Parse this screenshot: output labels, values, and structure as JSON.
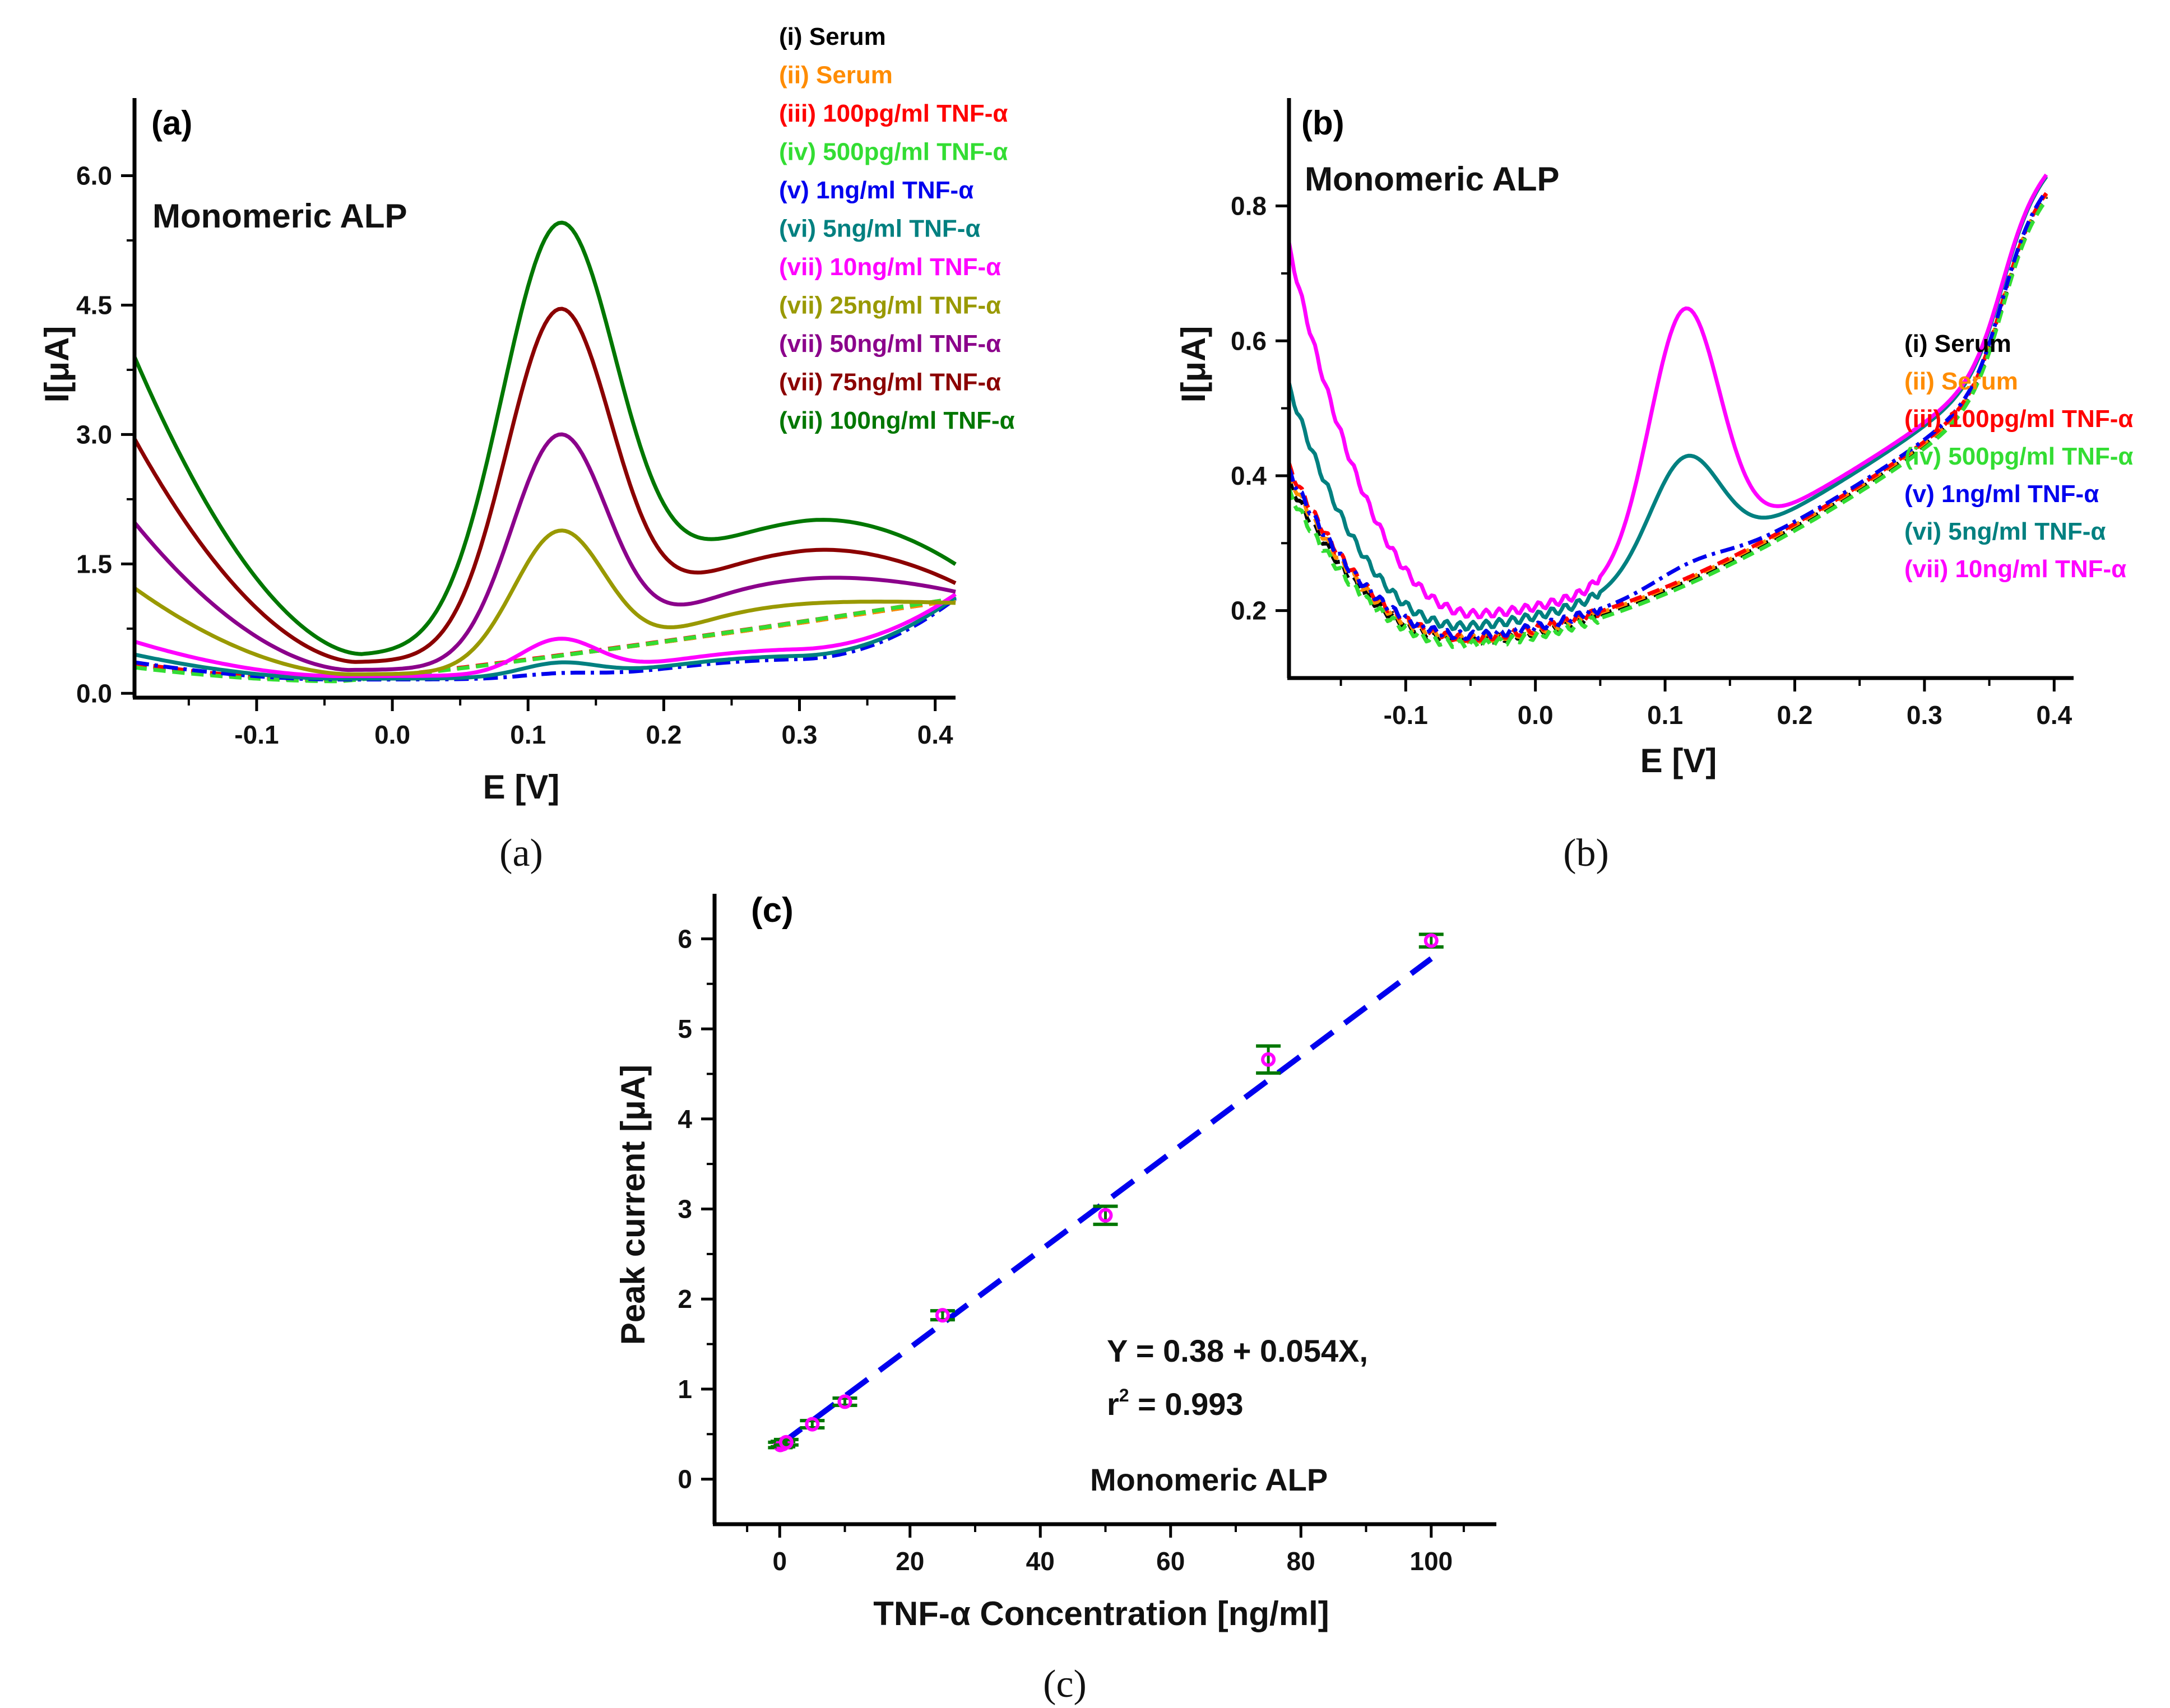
{
  "chart_data": [
    {
      "panel": "(a)",
      "type": "line",
      "title": "Monomeric ALP",
      "xlabel": "E [V]",
      "ylabel": "I[μA]",
      "xlim": [
        -0.19,
        0.415
      ],
      "ylim": [
        -0.05,
        6.9
      ],
      "xticks": [
        -0.1,
        0.0,
        0.1,
        0.2,
        0.3,
        0.4
      ],
      "xtick_labels": [
        "-0.1",
        "0.0",
        "0.1",
        "0.2",
        "0.3",
        "0.4"
      ],
      "yticks": [
        0.0,
        1.5,
        3.0,
        4.5,
        6.0
      ],
      "ytick_labels": [
        "0.0",
        "1.5",
        "3.0",
        "4.5",
        "6.0"
      ],
      "caption": "(a)",
      "legend_position": "top-right",
      "series": [
        {
          "name": "(i) Serum",
          "color": "#000000",
          "style": "dash",
          "params": {
            "start": 0.33,
            "min": 0.15,
            "minx": -0.04,
            "peak": 0.0,
            "plateau": 0.4,
            "end": 1.08,
            "pw": 0.04
          }
        },
        {
          "name": "(ii) Serum",
          "color": "#ff8c00",
          "style": "dash",
          "params": {
            "start": 0.34,
            "min": 0.15,
            "minx": -0.04,
            "peak": 0.0,
            "plateau": 0.4,
            "end": 1.08,
            "pw": 0.04
          }
        },
        {
          "name": "(iii) 100pg/ml TNF-α",
          "color": "#ff0000",
          "style": "dash",
          "params": {
            "start": 0.35,
            "min": 0.15,
            "minx": -0.04,
            "peak": 0.0,
            "plateau": 0.4,
            "end": 1.1,
            "pw": 0.04
          }
        },
        {
          "name": "(iv) 500pg/ml TNF-α",
          "color": "#33dd33",
          "style": "dash",
          "params": {
            "start": 0.3,
            "min": 0.14,
            "minx": -0.04,
            "peak": 0.0,
            "plateau": 0.4,
            "end": 1.1,
            "pw": 0.04
          }
        },
        {
          "name": "(v) 1ng/ml TNF-α",
          "color": "#0000ee",
          "style": "dashdot",
          "params": {
            "start": 0.36,
            "min": 0.16,
            "minx": -0.04,
            "peak": 0.05,
            "plateau": 0.41,
            "end": 1.1,
            "pw": 0.04
          }
        },
        {
          "name": "(vi) 5ng/ml TNF-α",
          "color": "#008080",
          "style": "solid",
          "params": {
            "start": 0.45,
            "min": 0.17,
            "minx": -0.04,
            "peak": 0.16,
            "plateau": 0.45,
            "end": 1.12,
            "pw": 0.04
          }
        },
        {
          "name": "(vii) 10ng/ml TNF-α",
          "color": "#ff00ff",
          "style": "solid",
          "params": {
            "start": 0.6,
            "min": 0.2,
            "minx": -0.04,
            "peak": 0.4,
            "plateau": 0.53,
            "end": 1.15,
            "pw": 0.04
          }
        },
        {
          "name": "(vii) 25ng/ml TNF-α",
          "color": "#999900",
          "style": "solid",
          "params": {
            "start": 1.22,
            "min": 0.22,
            "minx": -0.03,
            "peak": 1.58,
            "plateau": 1.08,
            "end": 1.05,
            "pw": 0.048
          }
        },
        {
          "name": "(vii) 50ng/ml TNF-α",
          "color": "#8b008b",
          "style": "solid",
          "params": {
            "start": 1.98,
            "min": 0.27,
            "minx": -0.03,
            "peak": 2.62,
            "plateau": 1.38,
            "end": 1.18,
            "pw": 0.05
          }
        },
        {
          "name": "(vii) 75ng/ml TNF-α",
          "color": "#8b0000",
          "style": "solid",
          "params": {
            "start": 2.95,
            "min": 0.36,
            "minx": -0.025,
            "peak": 3.96,
            "plateau": 1.72,
            "end": 1.28,
            "pw": 0.055
          }
        },
        {
          "name": "(vii) 100ng/ml TNF-α",
          "color": "#007700",
          "style": "solid",
          "params": {
            "start": 3.9,
            "min": 0.44,
            "minx": -0.02,
            "peak": 4.85,
            "plateau": 2.08,
            "end": 1.5,
            "pw": 0.06
          }
        }
      ]
    },
    {
      "panel": "(b)",
      "type": "line",
      "title": "Monomeric ALP",
      "xlabel": "E [V]",
      "ylabel": "I[μA]",
      "xlim": [
        -0.19,
        0.415
      ],
      "ylim": [
        0.1,
        0.96
      ],
      "xticks": [
        -0.1,
        0.0,
        0.1,
        0.2,
        0.3,
        0.4
      ],
      "xtick_labels": [
        "-0.1",
        "0.0",
        "0.1",
        "0.2",
        "0.3",
        "0.4"
      ],
      "yticks": [
        0.2,
        0.4,
        0.6,
        0.8
      ],
      "ytick_labels": [
        "0.2",
        "0.4",
        "0.6",
        "0.8"
      ],
      "caption": "(b)",
      "legend_position": "middle-right",
      "series": [
        {
          "name": "(i) Serum",
          "color": "#000000",
          "style": "dash",
          "params": {
            "start": 0.39,
            "min": 0.155,
            "minx": -0.05,
            "shift": 0.0,
            "peak": 0.0,
            "bump": 0.0
          }
        },
        {
          "name": "(ii) Serum",
          "color": "#ff8c00",
          "style": "dash",
          "params": {
            "start": 0.4,
            "min": 0.158,
            "minx": -0.05,
            "shift": 0.0,
            "peak": 0.0,
            "bump": 0.0
          }
        },
        {
          "name": "(iii) 100pg/ml TNF-α",
          "color": "#ff0000",
          "style": "dash",
          "params": {
            "start": 0.41,
            "min": 0.157,
            "minx": -0.05,
            "shift": 0.003,
            "peak": 0.0,
            "bump": 0.0
          }
        },
        {
          "name": "(iv) 500pg/ml TNF-α",
          "color": "#33dd33",
          "style": "dash",
          "params": {
            "start": 0.38,
            "min": 0.154,
            "minx": -0.05,
            "shift": -0.004,
            "peak": 0.0,
            "bump": 0.0
          }
        },
        {
          "name": "(v) 1ng/ml TNF-α",
          "color": "#0000ee",
          "style": "dashdot",
          "params": {
            "start": 0.4,
            "min": 0.157,
            "minx": -0.05,
            "shift": 0.006,
            "peak": 0.0,
            "bump": 0.018
          }
        },
        {
          "name": "(vi) 5ng/ml TNF-α",
          "color": "#008080",
          "style": "solid",
          "params": {
            "start": 0.52,
            "min": 0.165,
            "minx": -0.055,
            "shift": 0.012,
            "peak": 0.16,
            "bump": 0.0
          }
        },
        {
          "name": "(vii) 10ng/ml TNF-α",
          "color": "#ff00ff",
          "style": "solid",
          "params": {
            "start": 0.72,
            "min": 0.175,
            "minx": -0.045,
            "shift": 0.02,
            "peak": 0.37,
            "bump": 0.0
          }
        }
      ]
    },
    {
      "panel": "(c)",
      "type": "scatter",
      "title": "Monomeric ALP",
      "xlabel": "TNF-α Concentration [ng/ml]",
      "ylabel": "Peak current [μA]",
      "xlim": [
        -10,
        110
      ],
      "ylim": [
        -0.5,
        6.5
      ],
      "xticks": [
        0,
        20,
        40,
        60,
        80,
        100
      ],
      "xtick_labels": [
        "0",
        "20",
        "40",
        "60",
        "80",
        "100"
      ],
      "yticks": [
        0,
        1,
        2,
        3,
        4,
        5,
        6
      ],
      "ytick_labels": [
        "0",
        "1",
        "2",
        "3",
        "4",
        "5",
        "6"
      ],
      "x": [
        0.1,
        0.5,
        1,
        5,
        10,
        25,
        50,
        75,
        100
      ],
      "y": [
        0.38,
        0.39,
        0.41,
        0.61,
        0.86,
        1.82,
        2.93,
        4.66,
        5.98
      ],
      "yerr": [
        0.03,
        0.03,
        0.03,
        0.04,
        0.04,
        0.05,
        0.1,
        0.15,
        0.07
      ],
      "marker_color": "#ff00ff",
      "errorbar_color": "#007700",
      "fit": {
        "intercept": 0.38,
        "slope": 0.054,
        "x_range": [
          0,
          100
        ],
        "color": "#0000ee",
        "style": "dash"
      },
      "equation_line1": "Y = 0.38 + 0.054X,",
      "equation_r": "r",
      "equation_sup": "2",
      "equation_r2_value": " = 0.993",
      "caption": "(c)"
    }
  ]
}
